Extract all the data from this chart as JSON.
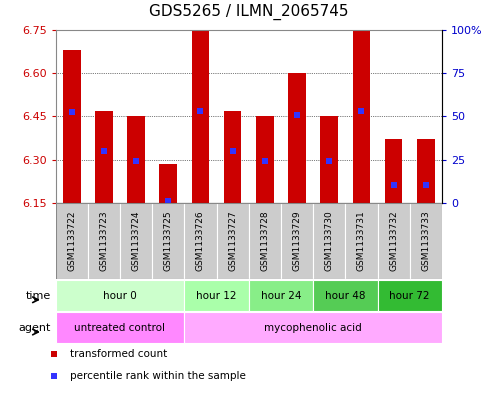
{
  "title": "GDS5265 / ILMN_2065745",
  "samples": [
    "GSM1133722",
    "GSM1133723",
    "GSM1133724",
    "GSM1133725",
    "GSM1133726",
    "GSM1133727",
    "GSM1133728",
    "GSM1133729",
    "GSM1133730",
    "GSM1133731",
    "GSM1133732",
    "GSM1133733"
  ],
  "bar_tops": [
    6.68,
    6.47,
    6.45,
    6.285,
    6.745,
    6.47,
    6.45,
    6.6,
    6.45,
    6.745,
    6.37,
    6.37
  ],
  "bar_base": 6.15,
  "percentile_values": [
    6.465,
    6.33,
    6.295,
    6.155,
    6.47,
    6.33,
    6.295,
    6.455,
    6.295,
    6.47,
    6.21,
    6.21
  ],
  "ylim": [
    6.15,
    6.75
  ],
  "y_ticks": [
    6.15,
    6.3,
    6.45,
    6.6,
    6.75
  ],
  "y2_ticks": [
    0,
    25,
    50,
    75,
    100
  ],
  "y2_tick_labels": [
    "0",
    "25",
    "50",
    "75",
    "100%"
  ],
  "bar_color": "#cc0000",
  "percentile_color": "#3333ff",
  "grid_color": "#000000",
  "background_color": "#ffffff",
  "plot_bg_color": "#ffffff",
  "time_groups": [
    {
      "label": "hour 0",
      "start": 0,
      "end": 4,
      "color": "#ccffcc"
    },
    {
      "label": "hour 12",
      "start": 4,
      "end": 6,
      "color": "#aaffaa"
    },
    {
      "label": "hour 24",
      "start": 6,
      "end": 8,
      "color": "#88ee88"
    },
    {
      "label": "hour 48",
      "start": 8,
      "end": 10,
      "color": "#55cc55"
    },
    {
      "label": "hour 72",
      "start": 10,
      "end": 12,
      "color": "#33bb33"
    }
  ],
  "agent_groups": [
    {
      "label": "untreated control",
      "start": 0,
      "end": 4,
      "color": "#ff88ff"
    },
    {
      "label": "mycophenolic acid",
      "start": 4,
      "end": 12,
      "color": "#ffaaff"
    }
  ],
  "time_label": "time",
  "agent_label": "agent",
  "legend_items": [
    {
      "color": "#cc0000",
      "label": "transformed count"
    },
    {
      "color": "#3333ff",
      "label": "percentile rank within the sample"
    }
  ],
  "sample_bg_color": "#cccccc",
  "title_fontsize": 11,
  "axis_label_color_left": "#cc0000",
  "axis_label_color_right": "#0000cc",
  "border_color": "#888888"
}
